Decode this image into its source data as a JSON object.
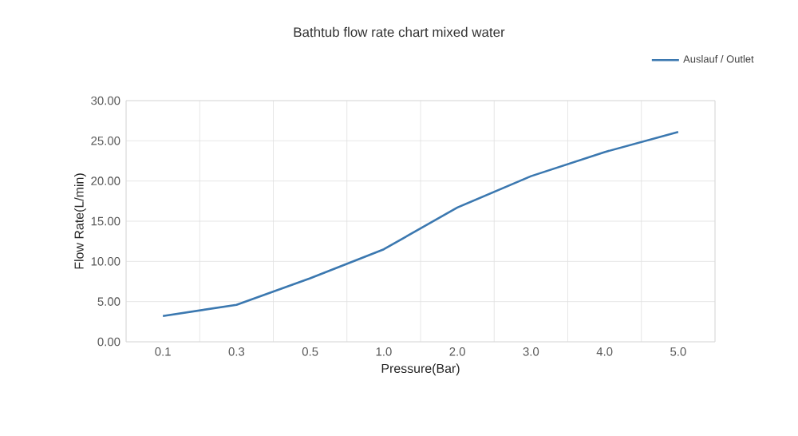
{
  "chart_data": {
    "type": "line",
    "title": "Bathtub flow rate chart mixed water",
    "xlabel": "Pressure(Bar)",
    "ylabel": "Flow Rate(L/min)",
    "categories": [
      "0.1",
      "0.3",
      "0.5",
      "1.0",
      "2.0",
      "3.0",
      "4.0",
      "5.0"
    ],
    "series": [
      {
        "name": "Auslauf / Outlet",
        "color": "#3b78b0",
        "values": [
          3.2,
          4.6,
          7.9,
          11.5,
          16.7,
          20.6,
          23.6,
          26.1
        ]
      }
    ],
    "ylim": [
      0,
      30
    ],
    "yticks": [
      {
        "value": 0,
        "label": "0.00"
      },
      {
        "value": 5,
        "label": "5.00"
      },
      {
        "value": 10,
        "label": "10.00"
      },
      {
        "value": 15,
        "label": "15.00"
      },
      {
        "value": 20,
        "label": "20.00"
      },
      {
        "value": 25,
        "label": "25.00"
      },
      {
        "value": 30,
        "label": "30.00"
      }
    ],
    "grid": true,
    "legend": "top right"
  }
}
